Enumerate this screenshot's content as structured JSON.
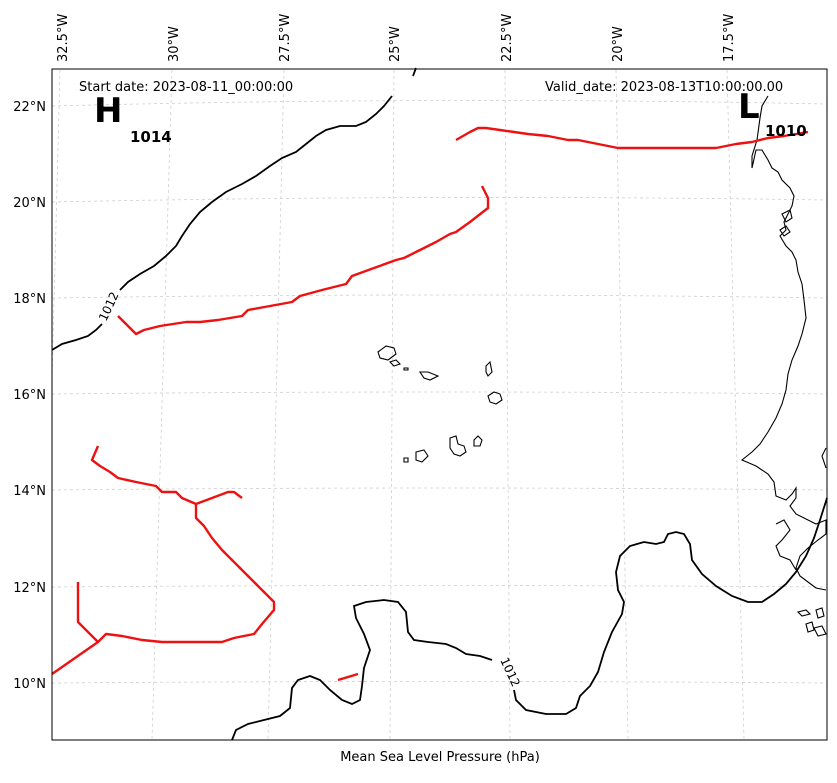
{
  "header": {
    "start_date": "Start date: 2023-08-11_00:00:00",
    "valid_date": "Valid_date: 2023-08-13T10:00:00.00"
  },
  "caption": "Mean Sea Level Pressure (hPa)",
  "lon_labels": [
    "32.5°W",
    "30°W",
    "27.5°W",
    "25°W",
    "22.5°W",
    "20°W",
    "17.5°W"
  ],
  "lat_labels": [
    "22°N",
    "20°N",
    "18°N",
    "16°N",
    "14°N",
    "12°N",
    "10°N"
  ],
  "pressure_centers": [
    {
      "symbol": "H",
      "value": "1014"
    },
    {
      "symbol": "L",
      "value": "1010"
    }
  ],
  "isobar_labels": [
    "1012",
    "1012"
  ],
  "colors": {
    "isobar": "#000000",
    "front": "#ee1111",
    "coastline": "#000000",
    "grid": "#cfcfcf"
  }
}
